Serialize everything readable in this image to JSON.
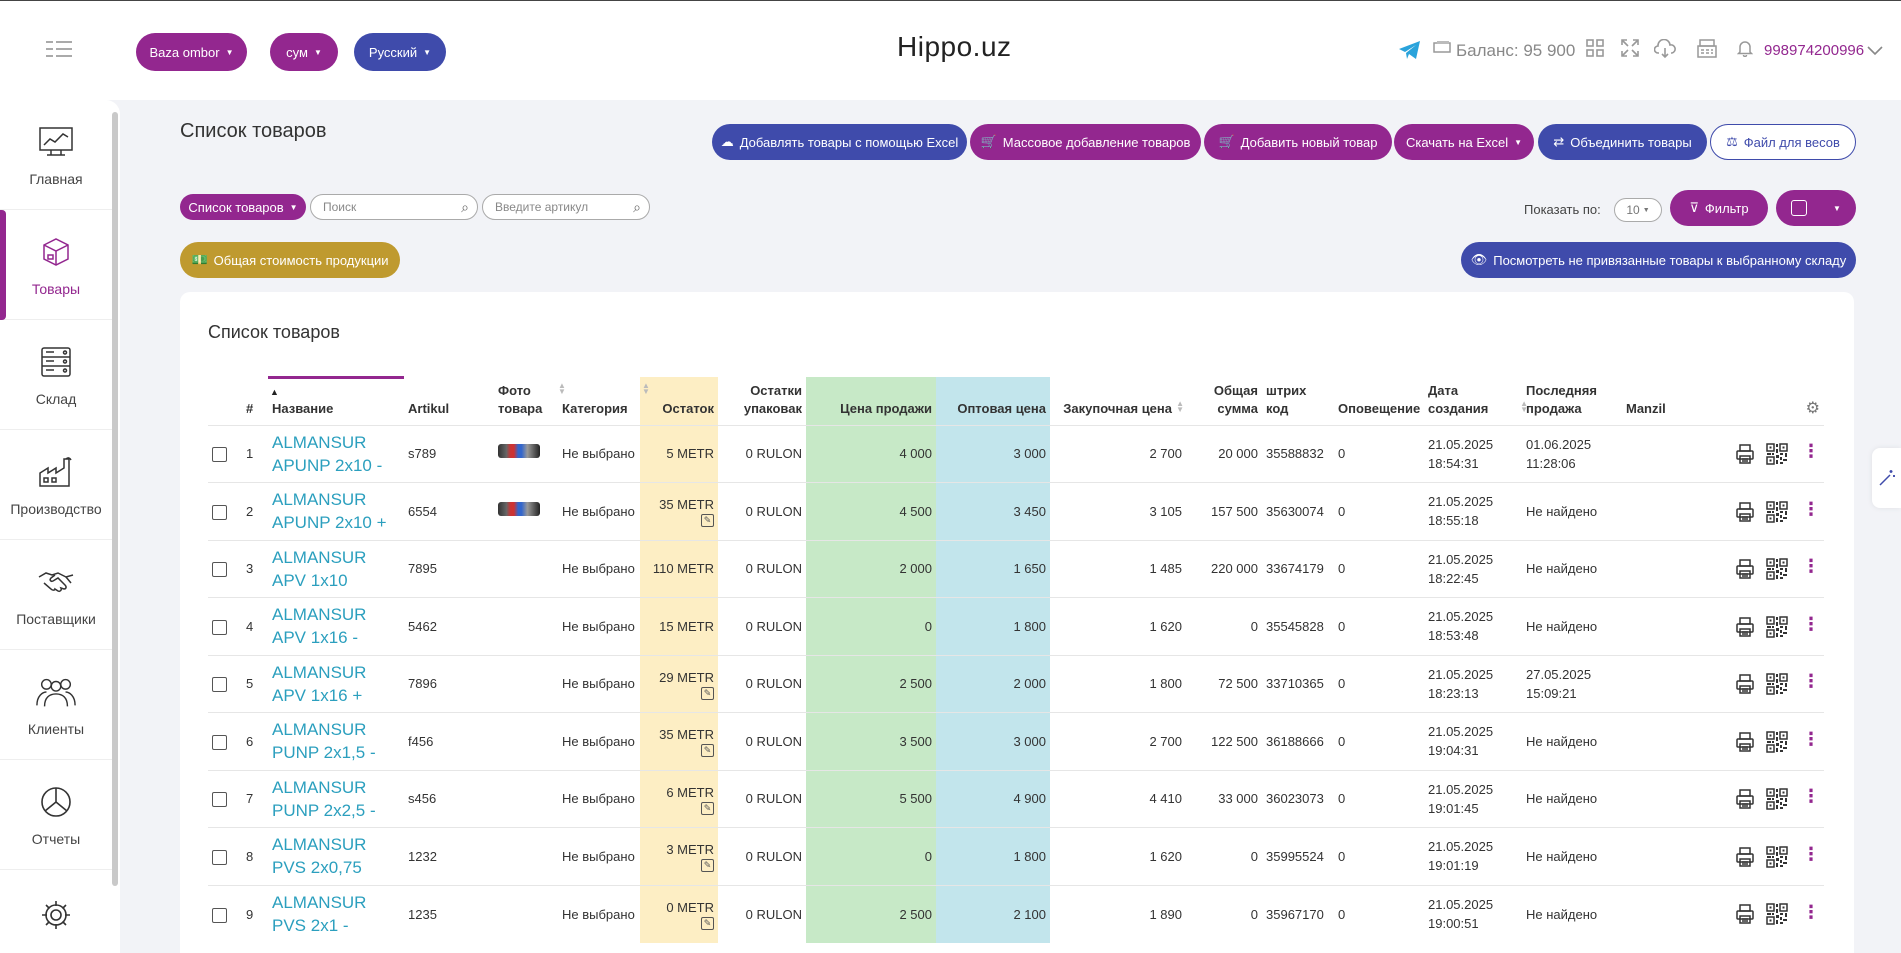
{
  "header": {
    "warehouse": "Baza ombor",
    "currency": "сум",
    "language": "Русский",
    "brand": "Hippo.uz",
    "balance": "Баланс: 95 900",
    "phone": "998974200996"
  },
  "sidebar": {
    "items": [
      {
        "label": "Главная",
        "icon": "dashboard-icon"
      },
      {
        "label": "Товары",
        "icon": "box-icon"
      },
      {
        "label": "Склад",
        "icon": "warehouse-icon"
      },
      {
        "label": "Производство",
        "icon": "factory-icon"
      },
      {
        "label": "Поставщики",
        "icon": "handshake-icon"
      },
      {
        "label": "Клиенты",
        "icon": "clients-icon"
      },
      {
        "label": "Отчеты",
        "icon": "reports-icon"
      },
      {
        "label": "",
        "icon": "gear-icon"
      }
    ]
  },
  "page": {
    "title": "Список товаров",
    "buttons": {
      "excel_add": "Добавлять товары с помощью Excel",
      "bulk_add": "Массовое добавление товаров",
      "add_new": "Добавить новый товар",
      "download_excel": "Скачать на Excel",
      "merge": "Объединить товары",
      "scale_file": "Файл для весов",
      "list_dropdown": "Список товаров",
      "filter": "Фильтр",
      "total_value": "Общая стоимость продукции",
      "unlinked": "Посмотреть не привязанные товары к выбранному складу"
    },
    "search_placeholder": "Поиск",
    "article_placeholder": "Введите артикул",
    "show_label": "Показать по:",
    "per_page": "10"
  },
  "table": {
    "card_title": "Список товаров",
    "headers": {
      "num": "#",
      "name": "Название",
      "artikul": "Artikul",
      "photo": "Фото товара",
      "category": "Категория",
      "stock": "Остаток",
      "pack": "Остатки упаковак",
      "sale": "Цена продажи",
      "wholesale": "Оптовая цена",
      "purchase": "Закупочная цена",
      "total": "Общая сумма",
      "barcode": "штрих код",
      "notify": "Оповещение",
      "created": "Дата создания",
      "last_sale": "Последняя продажа",
      "manzil": "Manzil"
    },
    "rows": [
      {
        "num": "1",
        "name": "ALMANSUR APUNP 2x10 -",
        "artikul": "s789",
        "photo": true,
        "category": "Не выбрано",
        "stock": "5 METR",
        "stock_edit": false,
        "pack": "0 RULON",
        "sale": "4 000",
        "wholesale": "3 000",
        "purchase": "2 700",
        "total": "20 000",
        "barcode": "35588832",
        "notify": "0",
        "created": "21.05.2025 18:54:31",
        "last_sale": "01.06.2025 11:28:06"
      },
      {
        "num": "2",
        "name": "ALMANSUR APUNP 2x10 +",
        "artikul": "6554",
        "photo": true,
        "category": "Не выбрано",
        "stock": "35 METR",
        "stock_edit": true,
        "pack": "0 RULON",
        "sale": "4 500",
        "wholesale": "3 450",
        "purchase": "3 105",
        "total": "157 500",
        "barcode": "35630074",
        "notify": "0",
        "created": "21.05.2025 18:55:18",
        "last_sale": "Не найдено"
      },
      {
        "num": "3",
        "name": "ALMANSUR APV 1x10",
        "artikul": "7895",
        "photo": false,
        "category": "Не выбрано",
        "stock": "110 METR",
        "stock_edit": false,
        "pack": "0 RULON",
        "sale": "2 000",
        "wholesale": "1 650",
        "purchase": "1 485",
        "total": "220 000",
        "barcode": "33674179",
        "notify": "0",
        "created": "21.05.2025 18:22:45",
        "last_sale": "Не найдено"
      },
      {
        "num": "4",
        "name": "ALMANSUR APV 1x16 -",
        "artikul": "5462",
        "photo": false,
        "category": "Не выбрано",
        "stock": "15 METR",
        "stock_edit": false,
        "pack": "0 RULON",
        "sale": "0",
        "wholesale": "1 800",
        "purchase": "1 620",
        "total": "0",
        "barcode": "35545828",
        "notify": "0",
        "created": "21.05.2025 18:53:48",
        "last_sale": "Не найдено"
      },
      {
        "num": "5",
        "name": "ALMANSUR APV 1x16 +",
        "artikul": "7896",
        "photo": false,
        "category": "Не выбрано",
        "stock": "29 METR",
        "stock_edit": true,
        "pack": "0 RULON",
        "sale": "2 500",
        "wholesale": "2 000",
        "purchase": "1 800",
        "total": "72 500",
        "barcode": "33710365",
        "notify": "0",
        "created": "21.05.2025 18:23:13",
        "last_sale": "27.05.2025 15:09:21"
      },
      {
        "num": "6",
        "name": "ALMANSUR PUNP 2x1,5 -",
        "artikul": "f456",
        "photo": false,
        "category": "Не выбрано",
        "stock": "35 METR",
        "stock_edit": true,
        "pack": "0 RULON",
        "sale": "3 500",
        "wholesale": "3 000",
        "purchase": "2 700",
        "total": "122 500",
        "barcode": "36188666",
        "notify": "0",
        "created": "21.05.2025 19:04:31",
        "last_sale": "Не найдено"
      },
      {
        "num": "7",
        "name": "ALMANSUR PUNP 2x2,5 -",
        "artikul": "s456",
        "photo": false,
        "category": "Не выбрано",
        "stock": "6 METR",
        "stock_edit": true,
        "pack": "0 RULON",
        "sale": "5 500",
        "wholesale": "4 900",
        "purchase": "4 410",
        "total": "33 000",
        "barcode": "36023073",
        "notify": "0",
        "created": "21.05.2025 19:01:45",
        "last_sale": "Не найдено"
      },
      {
        "num": "8",
        "name": "ALMANSUR PVS 2x0,75",
        "artikul": "1232",
        "photo": false,
        "category": "Не выбрано",
        "stock": "3 METR",
        "stock_edit": true,
        "pack": "0 RULON",
        "sale": "0",
        "wholesale": "1 800",
        "purchase": "1 620",
        "total": "0",
        "barcode": "35995524",
        "notify": "0",
        "created": "21.05.2025 19:01:19",
        "last_sale": "Не найдено"
      },
      {
        "num": "9",
        "name": "ALMANSUR PVS 2x1 -",
        "artikul": "1235",
        "photo": false,
        "category": "Не выбрано",
        "stock": "0 METR",
        "stock_edit": true,
        "pack": "0 RULON",
        "sale": "2 500",
        "wholesale": "2 100",
        "purchase": "1 890",
        "total": "0",
        "barcode": "35967170",
        "notify": "0",
        "created": "21.05.2025 19:00:51",
        "last_sale": "Не найдено"
      }
    ]
  },
  "colors": {
    "purple": "#93278f",
    "indigo": "#3f4bab",
    "gold": "#bf9a2f",
    "link": "#2b9fbe"
  }
}
